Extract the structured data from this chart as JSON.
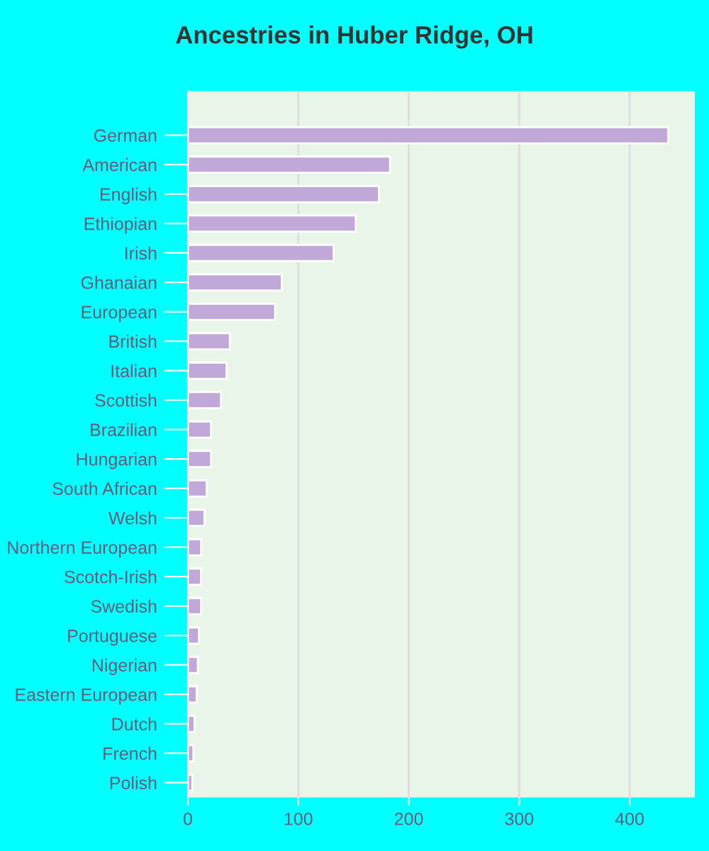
{
  "chart_data": {
    "type": "bar",
    "orientation": "horizontal",
    "title": "Ancestries in Huber Ridge, OH",
    "categories": [
      "German",
      "American",
      "English",
      "Ethiopian",
      "Irish",
      "Ghanaian",
      "European",
      "British",
      "Italian",
      "Scottish",
      "Brazilian",
      "Hungarian",
      "South African",
      "Welsh",
      "Northern European",
      "Scotch-Irish",
      "Swedish",
      "Portuguese",
      "Nigerian",
      "Eastern European",
      "Dutch",
      "French",
      "Polish"
    ],
    "values": [
      435,
      183,
      173,
      152,
      132,
      85,
      79,
      38,
      35,
      30,
      21,
      21,
      17,
      15,
      12,
      12,
      12,
      10,
      9,
      8,
      6,
      5,
      4
    ],
    "color": "#c0a8d8",
    "xlim": [
      0,
      459
    ],
    "xticks": [
      0,
      100,
      200,
      300,
      400
    ],
    "grid": "x",
    "legend": false
  }
}
